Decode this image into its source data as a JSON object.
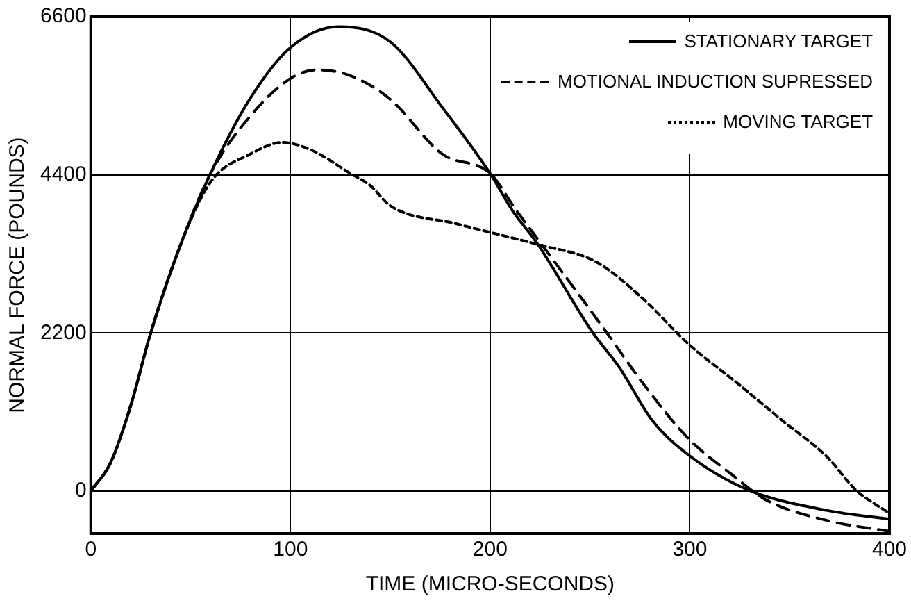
{
  "chart_data": {
    "type": "line",
    "xlabel": "TIME (MICRO-SECONDS)",
    "ylabel": "NORMAL FORCE (POUNDS)",
    "xlim": [
      0,
      400
    ],
    "xticks": [
      0,
      100,
      200,
      300,
      400
    ],
    "ylim": [
      -590,
      6600
    ],
    "yticks": [
      0,
      2200,
      4400,
      6600
    ],
    "grid": true,
    "legend": "top right",
    "marker": "none",
    "series": [
      {
        "name": "STATIONARY TARGET",
        "color": "#000000",
        "line_style": "solid",
        "x": [
          0,
          10,
          20,
          30,
          45,
          60,
          80,
          100,
          124,
          150,
          176,
          200,
          211,
          224,
          251,
          265,
          281,
          300,
          329,
          369,
          400
        ],
        "values": [
          0,
          400,
          1190,
          2200,
          3430,
          4420,
          5470,
          6170,
          6460,
          6250,
          5340,
          4420,
          3910,
          3430,
          2220,
          1710,
          990,
          490,
          20,
          -270,
          -390
        ]
      },
      {
        "name": "MOTIONAL INDUCTION SUPRESSED",
        "color": "#000000",
        "line_style": "dashed",
        "x": [
          0,
          10,
          20,
          30,
          45,
          60,
          80,
          100,
          113,
          130,
          150,
          176,
          200,
          213,
          224,
          258,
          276,
          299,
          322,
          338,
          369,
          400
        ],
        "values": [
          0,
          400,
          1190,
          2200,
          3430,
          4420,
          5220,
          5740,
          5860,
          5780,
          5450,
          4690,
          4420,
          3910,
          3500,
          2220,
          1520,
          740,
          210,
          -120,
          -410,
          -560
        ]
      },
      {
        "name": "MOVING TARGET",
        "color": "#000000",
        "line_style": "dotted",
        "x": [
          0,
          10,
          20,
          30,
          45,
          60,
          80,
          96,
          110,
          130,
          140,
          150,
          183,
          200,
          224,
          253,
          276,
          300,
          323,
          346,
          369,
          383,
          400
        ],
        "values": [
          0,
          400,
          1190,
          2200,
          3430,
          4300,
          4690,
          4850,
          4750,
          4420,
          4250,
          3970,
          3720,
          3600,
          3430,
          3190,
          2690,
          2030,
          1520,
          990,
          470,
          20,
          -310
        ]
      }
    ]
  }
}
